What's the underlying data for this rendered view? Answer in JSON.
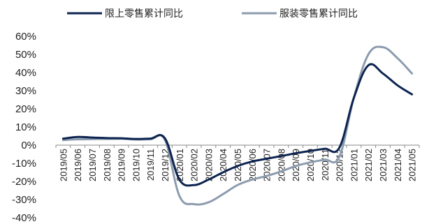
{
  "chart_data": {
    "type": "line",
    "title": "",
    "xlabel": "",
    "ylabel": "",
    "ylim": [
      -40,
      60
    ],
    "yticks": [
      -40,
      -30,
      -20,
      -10,
      0,
      10,
      20,
      30,
      40,
      50,
      60
    ],
    "ytick_labels": [
      "-40%",
      "-30%",
      "-20%",
      "-10%",
      "0%",
      "10%",
      "20%",
      "30%",
      "40%",
      "50%",
      "60%"
    ],
    "categories": [
      "2019/05",
      "2019/06",
      "2019/07",
      "2019/08",
      "2019/09",
      "2019/10",
      "2019/11",
      "2019/12",
      "2020/01",
      "2020/02",
      "2020/03",
      "2020/04",
      "2020/05",
      "2020/06",
      "2020/07",
      "2020/08",
      "2020/09",
      "2020/10",
      "2020/11",
      "2020/12",
      "2021/01",
      "2021/02",
      "2021/03",
      "2021/04",
      "2021/05"
    ],
    "legend_position": "top",
    "grid": false,
    "series": [
      {
        "name": "限上零售累计同比",
        "color": "#0d2451",
        "values": [
          3.6,
          4.5,
          4.2,
          3.9,
          3.8,
          3.4,
          3.6,
          3.8,
          -19.0,
          -22.0,
          -19.0,
          -15.0,
          -11.5,
          -9.0,
          -7.5,
          -6.0,
          -4.5,
          -3.2,
          -2.0,
          -1.5,
          26.0,
          44.0,
          39.5,
          33.0,
          28.0
        ]
      },
      {
        "name": "服装零售累计同比",
        "color": "#8c9cae",
        "values": [
          2.8,
          3.2,
          3.3,
          3.4,
          3.5,
          3.1,
          3.2,
          2.9,
          -28.0,
          -32.5,
          -31.5,
          -27.0,
          -22.0,
          -19.0,
          -17.0,
          -14.5,
          -11.5,
          -9.5,
          -8.0,
          -6.5,
          26.0,
          50.0,
          54.0,
          48.0,
          39.5
        ]
      }
    ]
  }
}
